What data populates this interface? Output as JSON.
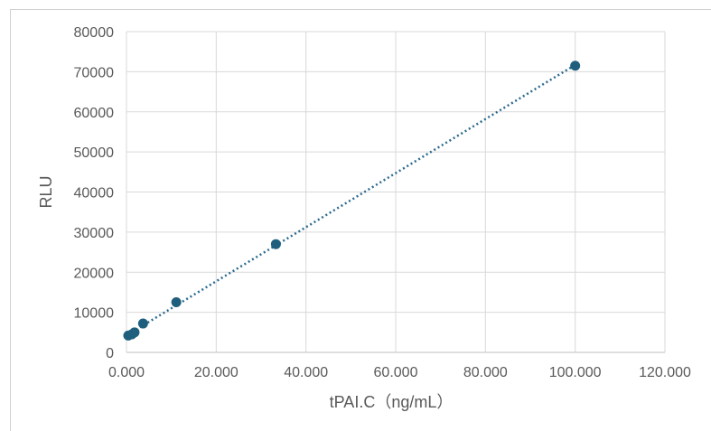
{
  "chart_data": {
    "type": "scatter",
    "xlabel": "tPAI.C（ng/mL）",
    "ylabel": "RLU",
    "xlim": [
      0,
      120
    ],
    "ylim": [
      0,
      80000
    ],
    "x_ticks": [
      0,
      20,
      40,
      60,
      80,
      100,
      120
    ],
    "x_tick_labels": [
      "0.000",
      "20.000",
      "40.000",
      "60.000",
      "80.000",
      "100.000",
      "120.000"
    ],
    "y_ticks": [
      0,
      10000,
      20000,
      30000,
      40000,
      50000,
      60000,
      70000,
      80000
    ],
    "y_tick_labels": [
      "0",
      "10000",
      "20000",
      "30000",
      "40000",
      "50000",
      "60000",
      "70000",
      "80000"
    ],
    "grid": true,
    "series": [
      {
        "points": [
          {
            "x": 0.4,
            "y": 4200
          },
          {
            "x": 1.2,
            "y": 4500
          },
          {
            "x": 1.8,
            "y": 5000
          },
          {
            "x": 3.7,
            "y": 7200
          },
          {
            "x": 11.1,
            "y": 12500
          },
          {
            "x": 33.3,
            "y": 27000
          },
          {
            "x": 100,
            "y": 71500
          }
        ],
        "trendline": {
          "type": "linear",
          "style": "dotted"
        }
      }
    ],
    "colors": {
      "marker": "#1f5f7d",
      "trendline": "#2b6a8f",
      "grid": "#d9d9d9",
      "text": "#595959"
    }
  }
}
